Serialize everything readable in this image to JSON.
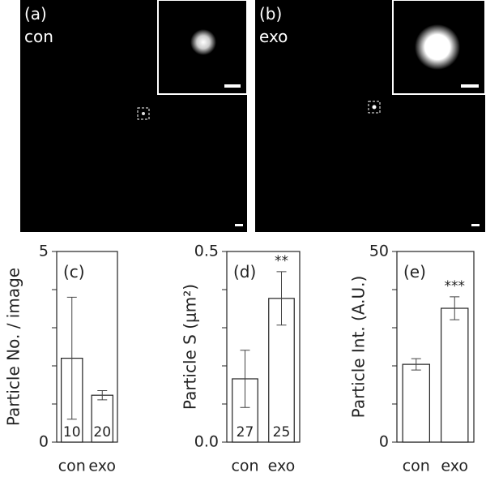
{
  "images": [
    {
      "label": "(a)",
      "name": "con"
    },
    {
      "label": "(b)",
      "name": "exo"
    }
  ],
  "chart_data": [
    {
      "type": "bar",
      "label": "(c)",
      "y_label": "Particle No. / image",
      "categories": [
        "con",
        "exo"
      ],
      "values": [
        2.2,
        1.23
      ],
      "errors": [
        1.6,
        0.12
      ],
      "n": [
        10,
        20
      ],
      "ylim": [
        0,
        5
      ],
      "yticks": [
        0,
        5
      ],
      "minor_yticks": [
        1,
        2,
        3,
        4
      ]
    },
    {
      "type": "bar",
      "label": "(d)",
      "y_label": "Particle S (μm²)",
      "categories": [
        "con",
        "exo"
      ],
      "values": [
        0.166,
        0.377
      ],
      "errors": [
        0.075,
        0.07
      ],
      "n": [
        27,
        25
      ],
      "annotations": [
        {
          "index": 1,
          "text": "**"
        }
      ],
      "ylim": [
        0,
        0.5
      ],
      "yticks": [
        {
          "value": 0,
          "label": "0.0"
        },
        0.5
      ],
      "minor_yticks": [
        0.1,
        0.2,
        0.3,
        0.4
      ]
    },
    {
      "type": "bar",
      "label": "(e)",
      "y_label": "Particle Int. (A.U.)",
      "categories": [
        "con",
        "exo"
      ],
      "values": [
        20.4,
        35.1
      ],
      "errors": [
        1.5,
        3
      ],
      "annotations": [
        {
          "index": 1,
          "text": "***"
        }
      ],
      "ylim": [
        0,
        50
      ],
      "yticks": [
        0,
        50
      ],
      "minor_yticks": [
        10,
        20,
        30,
        40
      ]
    }
  ]
}
